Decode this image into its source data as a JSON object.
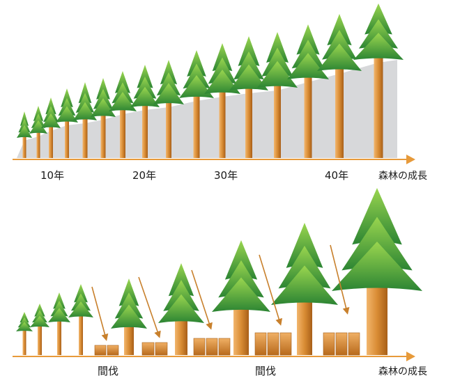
{
  "top": {
    "year_labels": [
      "10年",
      "20年",
      "30年",
      "40年"
    ],
    "axis_label": "森林の成長"
  },
  "bottom": {
    "thinning_labels": [
      "間伐",
      "間伐"
    ],
    "axis_label": "森林の成長"
  },
  "colors": {
    "trunk_light": "#e7a45a",
    "trunk_dark": "#b8701f",
    "foliage_light": "#8fcf4a",
    "foliage_dark": "#2f8a36",
    "area_fill": "#d7d8da",
    "axis": "#e79a3a"
  }
}
